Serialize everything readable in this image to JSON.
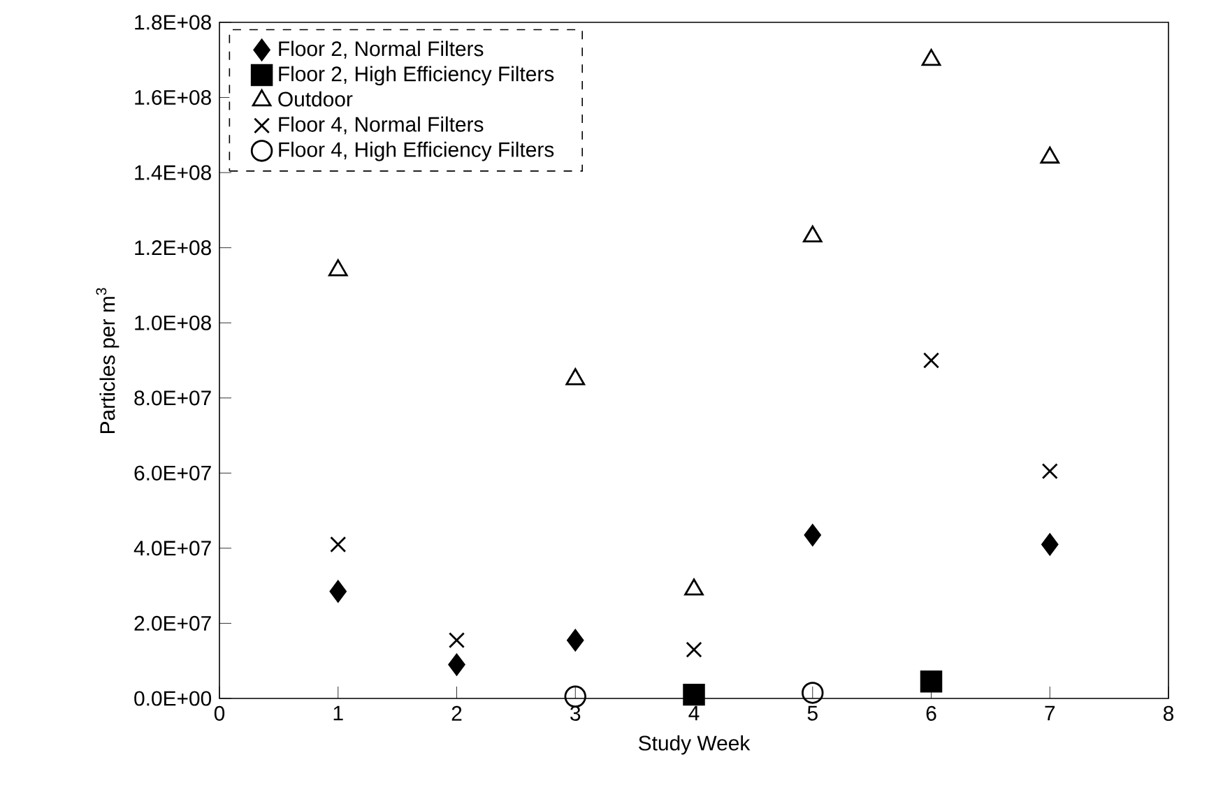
{
  "chart_data": {
    "type": "scatter",
    "xlabel": "Study Week",
    "ylabel": "Particles per m$^{3}$",
    "xlim": [
      0,
      8
    ],
    "xticks": [
      0,
      1,
      2,
      3,
      4,
      5,
      6,
      7,
      8
    ],
    "ylim": [
      0,
      180000000
    ],
    "yticks": [
      {
        "value": 0,
        "label": "0.0E+00"
      },
      {
        "value": 20000000,
        "label": "2.0E+07"
      },
      {
        "value": 40000000,
        "label": "4.0E+07"
      },
      {
        "value": 60000000,
        "label": "6.0E+07"
      },
      {
        "value": 80000000,
        "label": "8.0E+07"
      },
      {
        "value": 100000000,
        "label": "1.0E+08"
      },
      {
        "value": 120000000,
        "label": "1.2E+08"
      },
      {
        "value": 140000000,
        "label": "1.4E+08"
      },
      {
        "value": 160000000,
        "label": "1.6E+08"
      },
      {
        "value": 180000000,
        "label": "1.8E+08"
      }
    ],
    "legend": "top left",
    "grid": false,
    "series": [
      {
        "name": "Floor 2, Normal Filters",
        "color": "#000000",
        "marker": "diamond",
        "x": [
          1,
          2,
          3,
          5,
          7
        ],
        "values": [
          28500000,
          9000000,
          15500000,
          43500000,
          41000000
        ]
      },
      {
        "name": "Floor 2, High Efficiency Filters",
        "color": "#000000",
        "marker": "square",
        "x": [
          4,
          6
        ],
        "values": [
          1000000,
          4500000
        ]
      },
      {
        "name": "Outdoor",
        "color": "#000000",
        "marker": "triangle",
        "x": [
          1,
          3,
          4,
          5,
          6,
          7
        ],
        "values": [
          114000000,
          85000000,
          29000000,
          123000000,
          170000000,
          144000000
        ]
      },
      {
        "name": "Floor 4, Normal Filters",
        "color": "#000000",
        "marker": "cross",
        "x": [
          1,
          2,
          4,
          6,
          7
        ],
        "values": [
          41000000,
          15500000,
          13000000,
          90000000,
          60500000
        ]
      },
      {
        "name": "Floor 4, High Efficiency Filters",
        "color": "#000000",
        "marker": "circle",
        "x": [
          3,
          5
        ],
        "values": [
          500000,
          1500000
        ]
      }
    ]
  }
}
